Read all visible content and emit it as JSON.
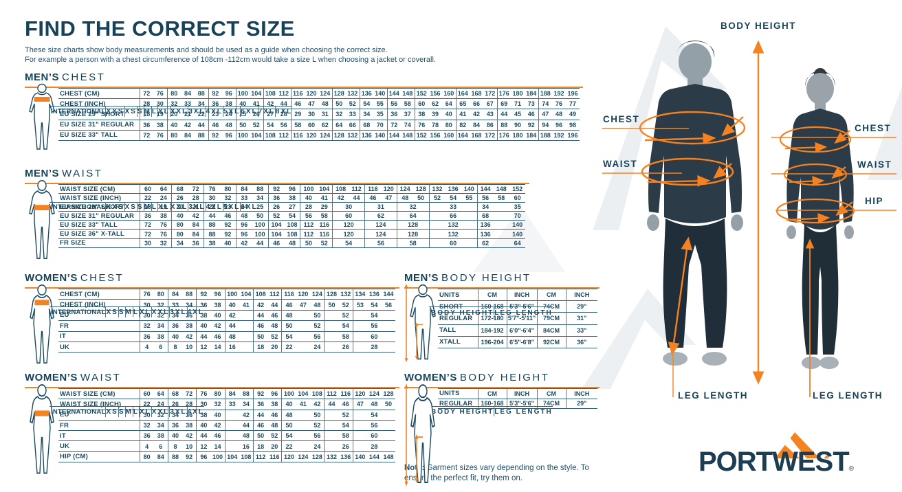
{
  "page": {
    "title": "FIND THE CORRECT SIZE",
    "subtitle_line1": "These size charts show body measurements and should be used as a guide when choosing the correct size.",
    "subtitle_line2": "For example a person with a chest circumference of 108cm -112cm would take a size L when choosing a jacket or coverall.",
    "note_bold": "Note:",
    "note_text": " Garment sizes vary depending on the style. To ensure the perfect fit, try them on."
  },
  "colors": {
    "navy": "#1b4a5f",
    "orange": "#f58220"
  },
  "size_tables": [
    {
      "id": "mens_chest",
      "title_bold": "MEN’S",
      "title_light": "CHEST",
      "header_label": "INTERNATIONAL",
      "groups": [
        {
          "n": "XXS",
          "s": 2
        },
        {
          "n": "XS",
          "s": 3
        },
        {
          "n": "S",
          "s": 2
        },
        {
          "n": "M",
          "s": 2
        },
        {
          "n": "L",
          "s": 2
        },
        {
          "n": "XL",
          "s": 3
        },
        {
          "n": "XXL",
          "s": 2
        },
        {
          "n": "3XL",
          "s": 2
        },
        {
          "n": "4XL",
          "s": 2
        },
        {
          "n": "5XL",
          "s": 3
        },
        {
          "n": "6XL",
          "s": 3
        },
        {
          "n": "7XL",
          "s": 3
        },
        {
          "n": "8XL",
          "s": 3
        }
      ],
      "rows": [
        {
          "label": "CHEST (CM)",
          "cells": [
            "72",
            "76",
            "80",
            "84",
            "88",
            "92",
            "96",
            "100",
            "104",
            "108",
            "112",
            "116",
            "120",
            "124",
            "128",
            "132",
            "136",
            "140",
            "144",
            "148",
            "152",
            "156",
            "160",
            "164",
            "168",
            "172",
            "176",
            "180",
            "184",
            "188",
            "192",
            "196"
          ]
        },
        {
          "label": "CHEST (INCH)",
          "cells": [
            "28",
            "30",
            "32",
            "33",
            "34",
            "36",
            "38",
            "40",
            "41",
            "42",
            "44",
            "46",
            "47",
            "48",
            "50",
            "52",
            "54",
            "55",
            "56",
            "58",
            "60",
            "62",
            "64",
            "65",
            "66",
            "67",
            "69",
            "71",
            "73",
            "74",
            "76",
            "77"
          ]
        },
        {
          "label": "EU SIZE 29\" SHORT",
          "cells": [
            "18",
            "19",
            "20",
            "21",
            "22",
            "23",
            "24",
            "25",
            "26",
            "27",
            "28",
            "29",
            "30",
            "31",
            "32",
            "33",
            "34",
            "35",
            "36",
            "37",
            "38",
            "39",
            "40",
            "41",
            "42",
            "43",
            "44",
            "45",
            "46",
            "47",
            "48",
            "49"
          ]
        },
        {
          "label": "EU SIZE 31\" REGULAR",
          "cells": [
            "36",
            "38",
            "40",
            "42",
            "44",
            "46",
            "48",
            "50",
            "52",
            "54",
            "56",
            "58",
            "60",
            "62",
            "64",
            "66",
            "68",
            "70",
            "72",
            "74",
            "76",
            "78",
            "80",
            "82",
            "84",
            "86",
            "88",
            "90",
            "92",
            "94",
            "96",
            "98"
          ]
        },
        {
          "label": "EU SIZE 33\" TALL",
          "cells": [
            "72",
            "76",
            "80",
            "84",
            "88",
            "92",
            "96",
            "100",
            "104",
            "108",
            "112",
            "116",
            "120",
            "124",
            "128",
            "132",
            "136",
            "140",
            "144",
            "148",
            "152",
            "156",
            "160",
            "164",
            "168",
            "172",
            "176",
            "180",
            "184",
            "188",
            "192",
            "196"
          ]
        }
      ]
    },
    {
      "id": "mens_waist",
      "title_bold": "MEN’S",
      "title_light": "WAIST",
      "header_label": "INTERNATIONAL",
      "groups": [
        {
          "n": "XXS",
          "s": 2
        },
        {
          "n": "XS",
          "s": 2
        },
        {
          "n": "S",
          "s": 2
        },
        {
          "n": "M",
          "s": 2
        },
        {
          "n": "L",
          "s": 2
        },
        {
          "n": "XL",
          "s": 2
        },
        {
          "n": "XXL",
          "s": 2
        },
        {
          "n": "3XL",
          "s": 2
        },
        {
          "n": "4XL",
          "s": 2
        },
        {
          "n": "5XL",
          "s": 3
        },
        {
          "n": "6XL",
          "s": 3
        }
      ],
      "rows": [
        {
          "label": "WAIST SIZE (CM)",
          "cells": [
            "60",
            "64",
            "68",
            "72",
            "76",
            "80",
            "84",
            "88",
            "92",
            "96",
            "100",
            "104",
            "108",
            "112",
            "116",
            "120",
            "124",
            "128",
            "132",
            "136",
            "140",
            "144",
            "148",
            "152"
          ]
        },
        {
          "label": "WAIST SIZE (INCH)",
          "cells": [
            "22",
            "24",
            "26",
            "28",
            "30",
            "32",
            "33",
            "34",
            "36",
            "38",
            "40",
            "41",
            "42",
            "44",
            "46",
            "47",
            "48",
            "50",
            "52",
            "54",
            "55",
            "56",
            "58",
            "60"
          ]
        },
        {
          "label": "EU SIZE 29\" SHORT",
          "cells": [
            "18",
            "19",
            "20",
            "21",
            "22",
            "23",
            "24",
            "25",
            "26",
            "27",
            "28",
            "29",
            {
              "t": "30",
              "s": 2
            },
            {
              "t": "31",
              "s": 2
            },
            {
              "t": "32",
              "s": 2
            },
            {
              "t": "33",
              "s": 3
            },
            "34",
            "",
            "35"
          ]
        },
        {
          "label": "EU SIZE 31\" REGULAR",
          "cells": [
            "36",
            "38",
            "40",
            "42",
            "44",
            "46",
            "48",
            "50",
            "52",
            "54",
            "56",
            "58",
            {
              "t": "60",
              "s": 2
            },
            {
              "t": "62",
              "s": 2
            },
            {
              "t": "64",
              "s": 2
            },
            {
              "t": "66",
              "s": 3
            },
            "68",
            "",
            "70"
          ]
        },
        {
          "label": "EU SIZE 33\" TALL",
          "cells": [
            "72",
            "76",
            "80",
            "84",
            "88",
            "92",
            "96",
            "100",
            "104",
            "108",
            "112",
            "116",
            {
              "t": "120",
              "s": 2
            },
            {
              "t": "124",
              "s": 2
            },
            {
              "t": "128",
              "s": 2
            },
            {
              "t": "132",
              "s": 3
            },
            "136",
            "",
            "140"
          ]
        },
        {
          "label": "EU SIZE 36\" X-TALL",
          "cells": [
            "72",
            "76",
            "80",
            "84",
            "88",
            "92",
            "96",
            "100",
            "104",
            "108",
            "112",
            "116",
            {
              "t": "120",
              "s": 2
            },
            {
              "t": "124",
              "s": 2
            },
            {
              "t": "128",
              "s": 2
            },
            {
              "t": "132",
              "s": 3
            },
            "136",
            "",
            "140"
          ]
        },
        {
          "label": "FR SIZE",
          "cells": [
            "30",
            "32",
            "34",
            "36",
            "38",
            "40",
            "42",
            "44",
            "46",
            "48",
            "50",
            "52",
            {
              "t": "54",
              "s": 2
            },
            {
              "t": "56",
              "s": 2
            },
            {
              "t": "58",
              "s": 2
            },
            {
              "t": "60",
              "s": 3
            },
            "62",
            "",
            "64"
          ]
        }
      ]
    },
    {
      "id": "womens_chest",
      "title_bold": "WOMEN’S",
      "title_light": "CHEST",
      "header_label": "INTERNATIONAL",
      "groups": [
        {
          "n": "XS",
          "s": 2
        },
        {
          "n": "S",
          "s": 2
        },
        {
          "n": "M",
          "s": 2
        },
        {
          "n": "L",
          "s": 2
        },
        {
          "n": "XL",
          "s": 2
        },
        {
          "n": "XXL",
          "s": 3
        },
        {
          "n": "3XL",
          "s": 2
        },
        {
          "n": "4XL",
          "s": 3
        }
      ],
      "rows": [
        {
          "label": "CHEST (CM)",
          "cells": [
            "76",
            "80",
            "84",
            "88",
            "92",
            "96",
            "100",
            "104",
            "108",
            "112",
            "116",
            "120",
            "124",
            "128",
            "132",
            "134",
            "136",
            "144"
          ]
        },
        {
          "label": "CHEST (INCH)",
          "cells": [
            "30",
            "32",
            "33",
            "34",
            "36",
            "38",
            "40",
            "41",
            "42",
            "44",
            "46",
            "47",
            "48",
            "50",
            "52",
            "53",
            "54",
            "56"
          ]
        },
        {
          "label": "EU",
          "cells": [
            "30",
            "32",
            "34",
            "36",
            "38",
            "40",
            "42",
            "",
            "44",
            "46",
            "48",
            "",
            "50",
            "",
            "52",
            "",
            "54",
            ""
          ]
        },
        {
          "label": "FR",
          "cells": [
            "32",
            "34",
            "36",
            "38",
            "40",
            "42",
            "44",
            "",
            "46",
            "48",
            "50",
            "",
            "52",
            "",
            "54",
            "",
            "56",
            ""
          ]
        },
        {
          "label": "IT",
          "cells": [
            "36",
            "38",
            "40",
            "42",
            "44",
            "46",
            "48",
            "",
            "50",
            "52",
            "54",
            "",
            "56",
            "",
            "58",
            "",
            "60",
            ""
          ]
        },
        {
          "label": "UK",
          "cells": [
            "4",
            "6",
            "8",
            "10",
            "12",
            "14",
            "16",
            "",
            "18",
            "20",
            "22",
            "",
            "24",
            "",
            "26",
            "",
            "28",
            ""
          ]
        }
      ]
    },
    {
      "id": "womens_waist",
      "title_bold": "WOMEN’S",
      "title_light": "WAIST",
      "header_label": "INTERNATIONAL",
      "groups": [
        {
          "n": "XS",
          "s": 2
        },
        {
          "n": "S",
          "s": 2
        },
        {
          "n": "M",
          "s": 2
        },
        {
          "n": "L",
          "s": 2
        },
        {
          "n": "XL",
          "s": 2
        },
        {
          "n": "XXL",
          "s": 3
        },
        {
          "n": "3XL",
          "s": 2
        },
        {
          "n": "4XL",
          "s": 3
        }
      ],
      "rows": [
        {
          "label": "WAIST SIZE (CM)",
          "cells": [
            "60",
            "64",
            "68",
            "72",
            "76",
            "80",
            "84",
            "88",
            "92",
            "96",
            "100",
            "104",
            "108",
            "112",
            "116",
            "120",
            "124",
            "128"
          ]
        },
        {
          "label": "WAIST SIZE (INCH)",
          "cells": [
            "22",
            "24",
            "26",
            "28",
            "30",
            "32",
            "33",
            "34",
            "36",
            "38",
            "40",
            "41",
            "42",
            "44",
            "46",
            "47",
            "48",
            "50"
          ]
        },
        {
          "label": "EU",
          "cells": [
            "30",
            "32",
            "34",
            "36",
            "38",
            "40",
            "",
            "42",
            "44",
            "46",
            "48",
            "",
            "50",
            "",
            "52",
            "",
            "54",
            ""
          ]
        },
        {
          "label": "FR",
          "cells": [
            "32",
            "34",
            "36",
            "38",
            "40",
            "42",
            "",
            "44",
            "46",
            "48",
            "50",
            "",
            "52",
            "",
            "54",
            "",
            "56",
            ""
          ]
        },
        {
          "label": "IT",
          "cells": [
            "36",
            "38",
            "40",
            "42",
            "44",
            "46",
            "",
            "48",
            "50",
            "52",
            "54",
            "",
            "56",
            "",
            "58",
            "",
            "60",
            ""
          ]
        },
        {
          "label": "UK",
          "cells": [
            "4",
            "6",
            "8",
            "10",
            "12",
            "14",
            "",
            "16",
            "18",
            "20",
            "22",
            "",
            "24",
            "",
            "26",
            "",
            "28",
            ""
          ]
        },
        {
          "label": "HIP (CM)",
          "cells": [
            "80",
            "84",
            "88",
            "92",
            "96",
            "100",
            "104",
            "108",
            "112",
            "116",
            "120",
            "124",
            "128",
            "132",
            "136",
            "140",
            "144",
            "148"
          ]
        }
      ]
    }
  ],
  "body_tables": [
    {
      "id": "mens_body_height",
      "title_bold": "MEN’S",
      "title_light": "BODY HEIGHT",
      "units_label": "UNITS",
      "col_groups": [
        "BODY HEIGHT",
        "LEG LENGTH"
      ],
      "units": [
        "CM",
        "INCH",
        "CM",
        "INCH"
      ],
      "rows": [
        [
          "SHORT",
          "160-168",
          "5'3\"-5'6\"",
          "74CM",
          "29\""
        ],
        [
          "REGULAR",
          "172-180",
          "5'7\"-5'11\"",
          "79CM",
          "31\""
        ],
        [
          "TALL",
          "184-192",
          "6'0\"-6'4\"",
          "84CM",
          "33\""
        ],
        [
          "XTALL",
          "196-204",
          "6'5\"-6'8\"",
          "92CM",
          "36\""
        ]
      ]
    },
    {
      "id": "womens_body_height",
      "title_bold": "WOMEN’S",
      "title_light": "BODY HEIGHT",
      "units_label": "UNITS",
      "col_groups": [
        "BODY HEIGHT",
        "LEG LENGTH"
      ],
      "units": [
        "CM",
        "INCH",
        "CM",
        "INCH"
      ],
      "rows": [
        [
          "REGULAR",
          "160-168",
          "5'3\"-5'6\"",
          "74CM",
          "29\""
        ]
      ]
    }
  ],
  "figure_panel": {
    "body_height_label": "BODY HEIGHT",
    "chest_left": "CHEST",
    "waist_left": "WAIST",
    "chest_right": "CHEST",
    "waist_right": "WAIST",
    "hip_right": "HIP",
    "leg_length_left": "LEG LENGTH",
    "leg_length_right": "LEG LENGTH"
  },
  "logo": {
    "text": "PORTWEST",
    "mark": "®"
  }
}
